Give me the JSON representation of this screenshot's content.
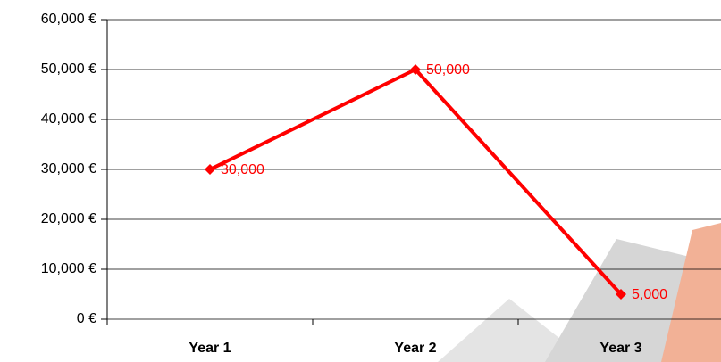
{
  "chart_data": {
    "type": "line",
    "categories": [
      "Year 1",
      "Year 2",
      "Year 3"
    ],
    "values": [
      30000,
      50000,
      5000
    ],
    "value_labels": [
      "30,000",
      "50,000",
      "5,000"
    ],
    "color": "#ff0000",
    "ylim": [
      0,
      60000
    ],
    "yticks": [
      {
        "value": 0,
        "label": "0 €"
      },
      {
        "value": 10000,
        "label": "10,000 €"
      },
      {
        "value": 20000,
        "label": "20,000 €"
      },
      {
        "value": 30000,
        "label": "30,000 €"
      },
      {
        "value": 40000,
        "label": "40,000 €"
      },
      {
        "value": 50000,
        "label": "50,000 €"
      },
      {
        "value": 60000,
        "label": "60,000 €"
      }
    ],
    "grid": true
  }
}
